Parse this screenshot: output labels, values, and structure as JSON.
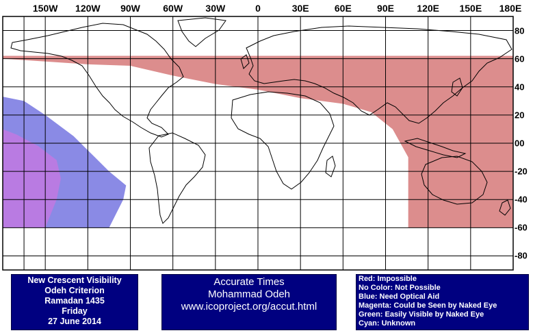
{
  "map": {
    "longitude_labels": [
      "150W",
      "120W",
      "90W",
      "60W",
      "30W",
      "0",
      "30E",
      "60E",
      "90E",
      "120E",
      "150E",
      "180E"
    ],
    "longitude_values": [
      -150,
      -120,
      -90,
      -60,
      -30,
      0,
      30,
      60,
      90,
      120,
      150,
      180
    ],
    "latitude_labels": [
      "80",
      "60",
      "40",
      "20",
      "00",
      "-20",
      "-40",
      "-60",
      "-80"
    ],
    "latitude_values": [
      80,
      60,
      40,
      20,
      0,
      -20,
      -40,
      -60,
      -80
    ],
    "colors": {
      "impossible": "#c03030",
      "optical_aid": "#2a2ad0",
      "naked_eye": "#e070e0",
      "grid": "#000000",
      "land": "#000000"
    },
    "zones": {
      "impossible": {
        "lat_range": [
          -60,
          62
        ],
        "note": "red region across Eurasia, Africa north, Australia east"
      },
      "optical_aid": {
        "lat_range": [
          -60,
          33
        ]
      },
      "naked_eye": {
        "lat_range": [
          -60,
          10
        ]
      }
    }
  },
  "title_panel": {
    "line1": "New Crescent Visibility",
    "line2": "Odeh Criterion",
    "line3": "Ramadan 1435",
    "line4": "Friday",
    "line5": "27 June 2014"
  },
  "credit_panel": {
    "line1": "Accurate Times",
    "line2": "Mohammad Odeh",
    "line3": "www.icoproject.org/accut.html"
  },
  "legend_panel": {
    "items": [
      "Red: Impossible",
      "No Color: Not Possible",
      "Blue: Need Optical Aid",
      "Magenta: Could be Seen by Naked Eye",
      "Green: Easily Visible by Naked Eye",
      "Cyan: Unknown"
    ]
  }
}
